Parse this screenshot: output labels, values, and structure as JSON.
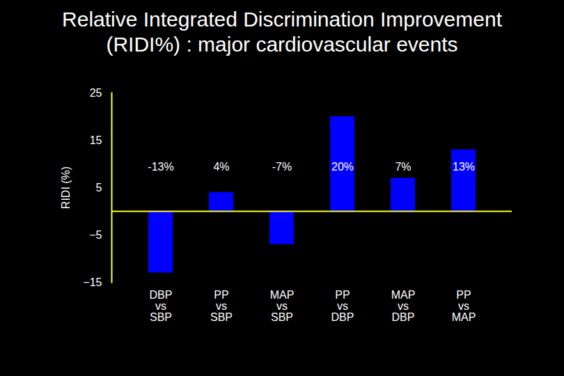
{
  "chart_data": {
    "type": "bar",
    "title": "Relative Integrated Discrimination Improvement (RIDI%) : major cardiovascular events",
    "ylabel": "RIDI (%)",
    "categories": [
      "DBP vs SBP",
      "PP vs SBP",
      "MAP vs SBP",
      "PP vs DBP",
      "MAP vs DBP",
      "PP vs MAP"
    ],
    "values": [
      -13,
      4,
      -7,
      20,
      7,
      13
    ],
    "value_labels": [
      "-13%",
      "4%",
      "-7%",
      "20%",
      "7%",
      "13%"
    ],
    "data_labels": true,
    "color": "#0000ff",
    "ylim": [
      -15,
      25
    ],
    "yticks": [
      -15,
      -5,
      5,
      15,
      25
    ],
    "grid": false
  }
}
